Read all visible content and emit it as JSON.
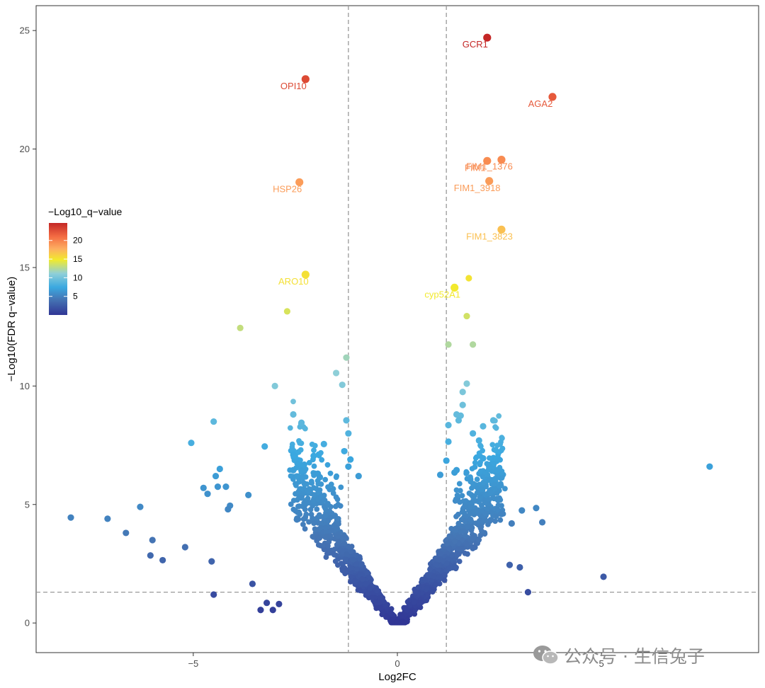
{
  "chart_data": {
    "type": "scatter",
    "title": "",
    "xlabel": "Log2FC",
    "ylabel": "−Log10(FDR q−value)",
    "xlim": [
      -8.85,
      8.85
    ],
    "ylim": [
      -1.25,
      26.05
    ],
    "x_ticks": [
      -5,
      0,
      5
    ],
    "x_tick_labels": [
      "−5",
      "0",
      "5"
    ],
    "y_ticks": [
      0,
      5,
      10,
      15,
      20,
      25
    ],
    "y_tick_labels": [
      "0",
      "5",
      "10",
      "15",
      "20",
      "25"
    ],
    "grid": false,
    "thresholds": {
      "log2fc": [
        -1.2,
        1.2
      ],
      "neg_log10_q": 1.3
    },
    "legend": {
      "title": "−Log10_q−value",
      "placement": "left",
      "range": [
        0,
        24.7
      ],
      "ticks": [
        5,
        10,
        15,
        20
      ],
      "tick_labels": [
        "5",
        "10",
        "15",
        "20"
      ],
      "colors": [
        "#313695",
        "#4575b4",
        "#3aa8e0",
        "#8fcfd8",
        "#f2ea2c",
        "#fdae61",
        "#f46d43",
        "#c42726"
      ]
    },
    "labeled_points": [
      {
        "label": "GCR1",
        "x": 2.2,
        "y": 24.7
      },
      {
        "label": "OPI10",
        "x": -2.25,
        "y": 22.95
      },
      {
        "label": "AGA2",
        "x": 3.8,
        "y": 22.2
      },
      {
        "label": "FIM1_1376",
        "x": 2.55,
        "y": 19.55
      },
      {
        "label": "FIM1",
        "x": 2.2,
        "y": 19.5
      },
      {
        "label": "HSP26",
        "x": -2.4,
        "y": 18.6
      },
      {
        "label": "FIM1_3918",
        "x": 2.25,
        "y": 18.65
      },
      {
        "label": "FIM1_3823",
        "x": 2.55,
        "y": 16.6
      },
      {
        "label": "ARO10",
        "x": -2.25,
        "y": 14.7
      },
      {
        "label": "cyp52A1",
        "x": 1.4,
        "y": 14.15
      }
    ],
    "points": [
      [
        1.75,
        14.55
      ],
      [
        -2.7,
        13.15
      ],
      [
        -3.85,
        12.45
      ],
      [
        1.7,
        12.95
      ],
      [
        1.25,
        11.75
      ],
      [
        1.85,
        11.75
      ],
      [
        -1.25,
        11.2
      ],
      [
        -1.5,
        10.55
      ],
      [
        -1.35,
        10.05
      ],
      [
        -3.0,
        10.0
      ],
      [
        1.7,
        10.1
      ],
      [
        1.6,
        9.75
      ],
      [
        1.6,
        9.2
      ],
      [
        -4.5,
        8.5
      ],
      [
        -2.55,
        8.8
      ],
      [
        -2.35,
        8.45
      ],
      [
        1.45,
        8.8
      ],
      [
        1.55,
        8.75
      ],
      [
        1.5,
        8.55
      ],
      [
        1.25,
        8.35
      ],
      [
        2.1,
        8.3
      ],
      [
        2.35,
        8.55
      ],
      [
        1.85,
        8.0
      ],
      [
        -1.25,
        8.55
      ],
      [
        -1.2,
        8.0
      ],
      [
        -5.05,
        7.6
      ],
      [
        -3.25,
        7.45
      ],
      [
        -1.8,
        7.55
      ],
      [
        -1.3,
        7.25
      ],
      [
        1.25,
        7.65
      ],
      [
        2.0,
        7.7
      ],
      [
        -2.55,
        7.1
      ],
      [
        -2.05,
        7.05
      ],
      [
        1.2,
        6.85
      ],
      [
        2.1,
        6.95
      ],
      [
        -1.15,
        6.9
      ],
      [
        -1.2,
        6.6
      ],
      [
        2.25,
        6.6
      ],
      [
        2.45,
        6.45
      ],
      [
        -4.35,
        6.5
      ],
      [
        -4.45,
        6.2
      ],
      [
        -2.55,
        6.45
      ],
      [
        -2.35,
        6.45
      ],
      [
        -1.95,
        6.3
      ],
      [
        -0.95,
        6.2
      ],
      [
        1.4,
        6.35
      ],
      [
        1.45,
        6.45
      ],
      [
        1.05,
        6.25
      ],
      [
        -1.9,
        6.15
      ],
      [
        -4.2,
        5.75
      ],
      [
        -4.4,
        5.75
      ],
      [
        -4.75,
        5.7
      ],
      [
        -4.65,
        5.45
      ],
      [
        -3.65,
        5.4
      ],
      [
        -6.3,
        4.9
      ],
      [
        -4.1,
        4.95
      ],
      [
        -4.15,
        4.8
      ],
      [
        7.65,
        6.6
      ],
      [
        -8.0,
        4.45
      ],
      [
        -7.1,
        4.4
      ],
      [
        -6.65,
        3.8
      ],
      [
        -6.0,
        3.5
      ],
      [
        -5.2,
        3.2
      ],
      [
        -6.05,
        2.85
      ],
      [
        -5.75,
        2.65
      ],
      [
        -4.55,
        2.6
      ],
      [
        -3.55,
        1.65
      ],
      [
        -4.5,
        1.2
      ],
      [
        3.4,
        4.85
      ],
      [
        3.55,
        4.25
      ],
      [
        3.05,
        4.75
      ],
      [
        2.75,
        2.45
      ],
      [
        3.0,
        2.35
      ],
      [
        3.2,
        1.3
      ],
      [
        5.05,
        1.95
      ],
      [
        2.55,
        4.6
      ],
      [
        2.8,
        4.2
      ],
      [
        -3.2,
        0.85
      ],
      [
        -3.35,
        0.55
      ],
      [
        -3.05,
        0.55
      ],
      [
        -2.9,
        0.8
      ]
    ]
  }
}
